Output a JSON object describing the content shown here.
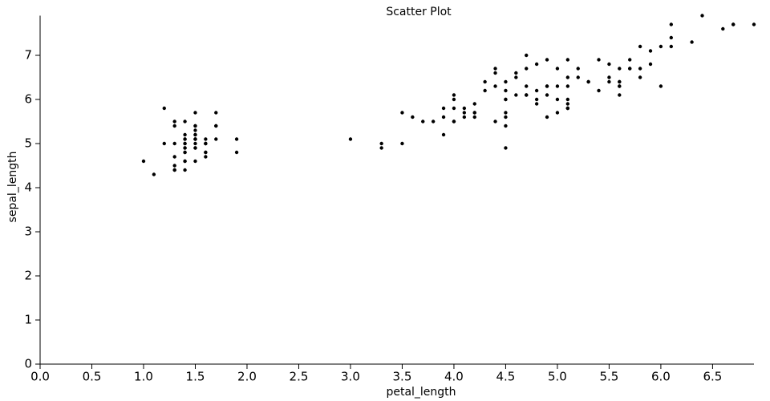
{
  "chart_data": {
    "type": "scatter",
    "title": "Scatter Plot",
    "x_label": "petal_length",
    "y_label": "sepal_length",
    "color": "#000000",
    "x": [
      1.4,
      1.4,
      1.3,
      1.5,
      1.4,
      1.7,
      1.4,
      1.5,
      1.4,
      1.5,
      1.5,
      1.6,
      1.4,
      1.1,
      1.2,
      1.5,
      1.3,
      1.4,
      1.7,
      1.5,
      1.7,
      1.5,
      1.0,
      1.7,
      1.9,
      1.6,
      1.6,
      1.5,
      1.4,
      1.6,
      1.6,
      1.5,
      1.5,
      1.4,
      1.5,
      1.2,
      1.3,
      1.4,
      1.3,
      1.5,
      1.3,
      1.3,
      1.3,
      1.6,
      1.9,
      1.4,
      1.6,
      1.4,
      1.5,
      1.4,
      4.7,
      4.5,
      4.9,
      4.0,
      4.6,
      4.5,
      4.7,
      3.3,
      4.6,
      3.9,
      3.5,
      4.2,
      4.0,
      4.7,
      3.6,
      4.4,
      4.5,
      4.1,
      4.5,
      3.9,
      4.8,
      4.0,
      4.9,
      4.7,
      4.3,
      4.4,
      4.8,
      5.0,
      4.5,
      3.5,
      3.8,
      3.7,
      3.9,
      5.1,
      4.5,
      4.5,
      4.7,
      4.4,
      4.1,
      4.0,
      4.4,
      4.6,
      4.0,
      3.3,
      4.2,
      4.2,
      4.2,
      4.3,
      3.0,
      4.1,
      6.0,
      5.1,
      5.9,
      5.6,
      5.8,
      6.6,
      4.5,
      6.3,
      5.8,
      6.1,
      5.1,
      5.3,
      5.5,
      5.0,
      5.1,
      5.3,
      5.5,
      6.7,
      6.9,
      5.0,
      5.7,
      4.9,
      6.7,
      4.9,
      5.7,
      6.0,
      4.8,
      4.9,
      5.6,
      5.8,
      6.1,
      6.4,
      5.6,
      5.1,
      5.6,
      6.1,
      5.6,
      5.5,
      4.8,
      5.4,
      5.6,
      5.1,
      5.1,
      5.9,
      5.7,
      5.2,
      5.0,
      5.2,
      5.4,
      5.1
    ],
    "values": [
      5.1,
      4.9,
      4.7,
      4.6,
      5.0,
      5.4,
      4.6,
      5.0,
      4.4,
      4.9,
      5.4,
      4.8,
      4.8,
      4.3,
      5.8,
      5.7,
      5.4,
      5.1,
      5.7,
      5.1,
      5.4,
      5.1,
      4.6,
      5.1,
      4.8,
      5.0,
      5.0,
      5.2,
      5.2,
      4.7,
      4.8,
      5.4,
      5.2,
      5.5,
      4.9,
      5.0,
      5.5,
      4.9,
      4.4,
      5.1,
      5.0,
      4.5,
      4.4,
      5.0,
      5.1,
      4.8,
      5.1,
      4.6,
      5.3,
      5.0,
      7.0,
      6.4,
      6.9,
      5.5,
      6.5,
      5.7,
      6.3,
      4.9,
      6.6,
      5.2,
      5.0,
      5.9,
      6.0,
      6.1,
      5.6,
      6.7,
      5.6,
      5.8,
      6.2,
      5.6,
      5.9,
      6.1,
      6.3,
      6.1,
      6.4,
      6.6,
      6.8,
      6.7,
      6.0,
      5.7,
      5.5,
      5.5,
      5.8,
      6.0,
      5.4,
      6.0,
      6.7,
      6.3,
      5.6,
      5.5,
      5.5,
      6.1,
      5.8,
      5.0,
      5.6,
      5.7,
      5.7,
      6.2,
      5.1,
      5.7,
      6.3,
      5.8,
      7.1,
      6.3,
      6.5,
      7.6,
      4.9,
      7.3,
      6.7,
      7.2,
      6.5,
      6.4,
      6.8,
      5.7,
      5.8,
      6.4,
      6.5,
      7.7,
      7.7,
      6.0,
      6.9,
      5.6,
      7.7,
      6.3,
      6.7,
      7.2,
      6.2,
      6.1,
      6.4,
      7.2,
      7.4,
      7.9,
      6.4,
      6.3,
      6.1,
      7.7,
      6.3,
      6.4,
      6.0,
      6.9,
      6.7,
      6.9,
      5.8,
      6.8,
      6.7,
      6.7,
      6.3,
      6.5,
      6.2,
      5.9
    ],
    "xlim": [
      0,
      6.9
    ],
    "ylim": [
      0,
      7.9
    ],
    "xticks": [
      {
        "value": 0,
        "label": "0.0"
      },
      0.5,
      {
        "value": 1,
        "label": "1.0"
      },
      1.5,
      {
        "value": 2,
        "label": "2.0"
      },
      2.5,
      {
        "value": 3,
        "label": "3.0"
      },
      3.5,
      {
        "value": 4,
        "label": "4.0"
      },
      4.5,
      {
        "value": 5,
        "label": "5.0"
      },
      5.5,
      {
        "value": 6,
        "label": "6.0"
      },
      6.5
    ],
    "yticks": [
      0,
      1,
      2,
      3,
      4,
      5,
      6,
      7
    ],
    "grid": false
  }
}
